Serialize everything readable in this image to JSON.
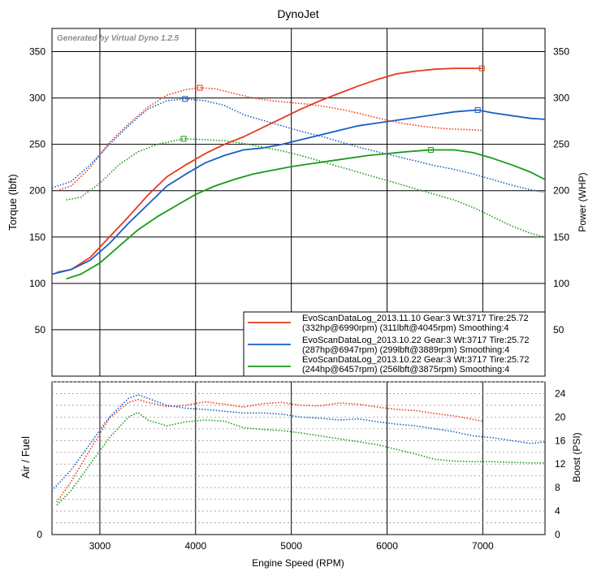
{
  "title": "DynoJet",
  "watermark": "Generated by Virtual Dyno 1.2.5",
  "x_axis": {
    "label": "Engine Speed (RPM)",
    "range": [
      2500,
      7650
    ],
    "ticks": [
      3000,
      4000,
      5000,
      6000,
      7000
    ]
  },
  "top_panel": {
    "left_label": "Torque (lbft)",
    "right_label": "Power (WHP)",
    "range": [
      0,
      375
    ],
    "left_ticks": [
      50,
      100,
      150,
      200,
      250,
      300,
      350
    ],
    "right_ticks": [
      50,
      100,
      150,
      200,
      250,
      300,
      350
    ],
    "grid": true
  },
  "bottom_panel": {
    "left_label": "Air / Fuel",
    "right_label": "Boost (PSI)",
    "range": [
      0,
      26
    ],
    "left_ticks": [
      0
    ],
    "right_ticks": [
      0,
      4,
      8,
      12,
      16,
      20,
      24
    ],
    "grid": true
  },
  "legend": {
    "position": "bottom-right",
    "entries": [
      {
        "line1": "EvoScanDataLog_2013.11.10 Gear:3 Wt:3717 Tire:25.72",
        "line2": "(332hp@6990rpm) (311lbft@4045rpm) Smoothing:4",
        "color": "#e8391c"
      },
      {
        "line1": "EvoScanDataLog_2013.10.22 Gear:3 Wt:3717 Tire:25.72",
        "line2": "(287hp@6947rpm) (299lbft@3889rpm) Smoothing:4",
        "color": "#1a5fc4"
      },
      {
        "line1": "EvoScanDataLog_2013.10.22 Gear:3 Wt:3717 Tire:25.72",
        "line2": "(244hp@6457rpm) (256lbft@3875rpm) Smoothing:4",
        "color": "#1a9a1a"
      }
    ]
  },
  "chart_data": [
    {
      "type": "line",
      "panel": "top",
      "xlabel": "Engine Speed (RPM)",
      "ylabel": "Power (WHP)",
      "series": [
        {
          "name": "EvoScanDataLog_2013.11.10",
          "color": "#e8391c",
          "style": "solid",
          "peak_marker": [
            6990,
            332
          ],
          "x": [
            2550,
            2700,
            2900,
            3100,
            3300,
            3500,
            3700,
            3900,
            4100,
            4300,
            4500,
            4700,
            4900,
            5100,
            5300,
            5500,
            5700,
            5900,
            6100,
            6300,
            6500,
            6700,
            6990
          ],
          "y": [
            112,
            115,
            128,
            150,
            172,
            195,
            215,
            228,
            240,
            250,
            258,
            268,
            278,
            288,
            297,
            305,
            313,
            320,
            326,
            329,
            331,
            332,
            332
          ]
        },
        {
          "name": "EvoScanDataLog_2013.10.22",
          "color": "#1a5fc4",
          "style": "solid",
          "peak_marker": [
            6947,
            287
          ],
          "x": [
            2500,
            2700,
            2900,
            3100,
            3300,
            3500,
            3700,
            3900,
            4100,
            4300,
            4500,
            4700,
            4900,
            5100,
            5300,
            5500,
            5700,
            5900,
            6100,
            6300,
            6500,
            6700,
            6947,
            7100,
            7300,
            7500,
            7650
          ],
          "y": [
            110,
            115,
            125,
            143,
            165,
            185,
            205,
            218,
            230,
            238,
            244,
            246,
            250,
            255,
            260,
            265,
            270,
            273,
            276,
            279,
            282,
            285,
            287,
            284,
            281,
            278,
            277
          ]
        },
        {
          "name": "EvoScanDataLog_2013.10.22",
          "color": "#1a9a1a",
          "style": "solid",
          "peak_marker": [
            6457,
            244
          ],
          "x": [
            2650,
            2800,
            3000,
            3200,
            3400,
            3600,
            3800,
            4000,
            4200,
            4400,
            4600,
            4800,
            5000,
            5200,
            5400,
            5600,
            5800,
            6000,
            6200,
            6457,
            6700,
            6900,
            7100,
            7300,
            7500,
            7650
          ],
          "y": [
            105,
            110,
            122,
            140,
            158,
            172,
            184,
            196,
            205,
            212,
            218,
            222,
            226,
            229,
            232,
            235,
            238,
            240,
            242,
            244,
            244,
            241,
            235,
            228,
            220,
            212
          ]
        },
        {
          "name": "EvoScanDataLog_2013.11.10",
          "color": "#e8391c",
          "style": "dotted",
          "peak_marker": [
            4045,
            311
          ],
          "x": [
            2550,
            2700,
            2900,
            3100,
            3300,
            3500,
            3700,
            3900,
            4045,
            4200,
            4400,
            4600,
            4800,
            5000,
            5200,
            5400,
            5600,
            5800,
            6000,
            6200,
            6400,
            6600,
            6800,
            7000
          ],
          "y": [
            200,
            205,
            225,
            252,
            272,
            290,
            303,
            309,
            311,
            310,
            305,
            300,
            297,
            295,
            293,
            290,
            286,
            281,
            276,
            272,
            269,
            267,
            266,
            265
          ]
        },
        {
          "name": "EvoScanDataLog_2013.10.22",
          "color": "#1a5fc4",
          "style": "dotted",
          "peak_marker": [
            3889,
            299
          ],
          "x": [
            2500,
            2700,
            2900,
            3100,
            3300,
            3500,
            3700,
            3889,
            4100,
            4300,
            4500,
            4700,
            4900,
            5100,
            5300,
            5500,
            5700,
            5900,
            6100,
            6300,
            6500,
            6700,
            6900,
            7100,
            7300,
            7500,
            7650
          ],
          "y": [
            203,
            210,
            228,
            250,
            270,
            288,
            297,
            299,
            297,
            292,
            282,
            276,
            270,
            264,
            259,
            253,
            247,
            242,
            237,
            232,
            227,
            223,
            218,
            212,
            206,
            201,
            198
          ]
        },
        {
          "name": "EvoScanDataLog_2013.10.22",
          "color": "#1a9a1a",
          "style": "dotted",
          "peak_marker": [
            3875,
            256
          ],
          "x": [
            2650,
            2800,
            3000,
            3200,
            3400,
            3600,
            3875,
            4100,
            4300,
            4500,
            4700,
            4900,
            5100,
            5300,
            5500,
            5700,
            5900,
            6100,
            6300,
            6500,
            6700,
            6900,
            7100,
            7300,
            7500,
            7650
          ],
          "y": [
            190,
            193,
            208,
            228,
            242,
            250,
            256,
            255,
            254,
            251,
            247,
            243,
            238,
            232,
            226,
            220,
            214,
            208,
            202,
            196,
            190,
            182,
            172,
            162,
            154,
            150
          ]
        }
      ]
    },
    {
      "type": "line",
      "panel": "bottom",
      "xlabel": "Engine Speed (RPM)",
      "ylabel": "Boost (PSI)",
      "series": [
        {
          "name": "EvoScanDataLog_2013.11.10",
          "color": "#e8391c",
          "style": "dotted",
          "x": [
            2550,
            2700,
            2900,
            3100,
            3300,
            3400,
            3500,
            3700,
            3900,
            4100,
            4300,
            4500,
            4700,
            4900,
            5100,
            5300,
            5500,
            5700,
            5900,
            6100,
            6300,
            6500,
            6700,
            6900,
            7000
          ],
          "y": [
            5.5,
            9,
            14.5,
            19.8,
            22.5,
            23,
            22.5,
            21.8,
            22,
            22.6,
            22.2,
            21.7,
            22.3,
            22.5,
            22,
            21.9,
            22.4,
            22.2,
            21.7,
            21.3,
            21.1,
            20.6,
            20.2,
            19.6,
            19.3
          ]
        },
        {
          "name": "EvoScanDataLog_2013.10.22",
          "color": "#1a5fc4",
          "style": "dotted",
          "x": [
            2500,
            2700,
            2900,
            3100,
            3300,
            3400,
            3500,
            3700,
            3900,
            4100,
            4300,
            4500,
            4700,
            4900,
            5100,
            5300,
            5500,
            5700,
            5900,
            6100,
            6300,
            6500,
            6700,
            6900,
            7100,
            7300,
            7500,
            7650
          ],
          "y": [
            7.5,
            11,
            15.5,
            20,
            23.2,
            23.8,
            23.2,
            22,
            21.5,
            21.3,
            21,
            20.7,
            20.7,
            20.5,
            20,
            19.8,
            19.5,
            19.7,
            19.2,
            18.8,
            18.5,
            18,
            17.5,
            16.8,
            16.5,
            16,
            15.5,
            15.8
          ]
        },
        {
          "name": "EvoScanDataLog_2013.10.22",
          "color": "#1a9a1a",
          "style": "dotted",
          "x": [
            2550,
            2700,
            2900,
            3100,
            3300,
            3400,
            3500,
            3700,
            3900,
            4100,
            4300,
            4500,
            4700,
            4900,
            5100,
            5300,
            5500,
            5700,
            5900,
            6100,
            6300,
            6500,
            6700,
            6900,
            7100,
            7300,
            7500,
            7650
          ],
          "y": [
            5,
            7.5,
            12,
            16.5,
            20,
            20.8,
            19.5,
            18.5,
            19.2,
            19.5,
            19.3,
            18.2,
            17.9,
            17.7,
            17.3,
            16.8,
            16.3,
            15.8,
            15.3,
            14.5,
            13.7,
            12.8,
            12.5,
            12.4,
            12.4,
            12.3,
            12.2,
            12.2
          ]
        }
      ]
    }
  ]
}
